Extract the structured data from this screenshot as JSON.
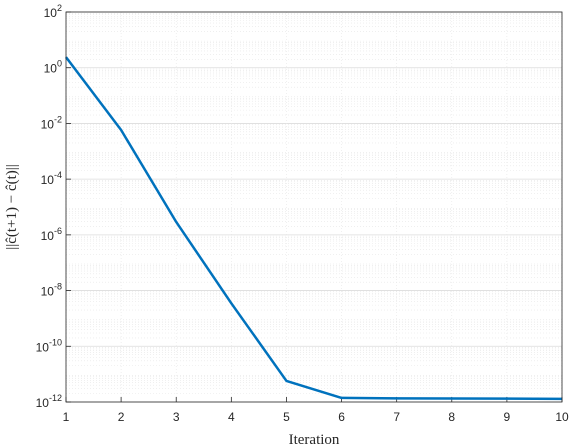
{
  "chart_data": {
    "type": "line",
    "x_label": "Iteration",
    "y_label": "||ĉ(t+1) − ĉ(t)||",
    "x": [
      1,
      2,
      3,
      4,
      5,
      6,
      7,
      8,
      9,
      10
    ],
    "series": [
      {
        "color": "#0072BD",
        "values": [
          2.4,
          0.0058,
          2.9e-06,
          3.5e-09,
          5.7e-12,
          1.4e-12,
          1.35e-12,
          1.33e-12,
          1.32e-12,
          1.3e-12
        ]
      }
    ],
    "xlim": [
      1,
      10
    ],
    "xticks": [
      1,
      2,
      3,
      4,
      5,
      6,
      7,
      8,
      9,
      10
    ],
    "ylim": [
      1e-12,
      100
    ],
    "log_y": true,
    "grid": true,
    "yticks": [
      {
        "value": 1e-12,
        "label": "10^-12"
      },
      {
        "value": 1e-10,
        "label": "10^-10"
      },
      {
        "value": 1e-08,
        "label": "10^-8"
      },
      {
        "value": 1e-06,
        "label": "10^-6"
      },
      {
        "value": 0.0001,
        "label": "10^-4"
      },
      {
        "value": 0.01,
        "label": "10^-2"
      },
      {
        "value": 1,
        "label": "10^0"
      },
      {
        "value": 100,
        "label": "10^2"
      }
    ]
  }
}
